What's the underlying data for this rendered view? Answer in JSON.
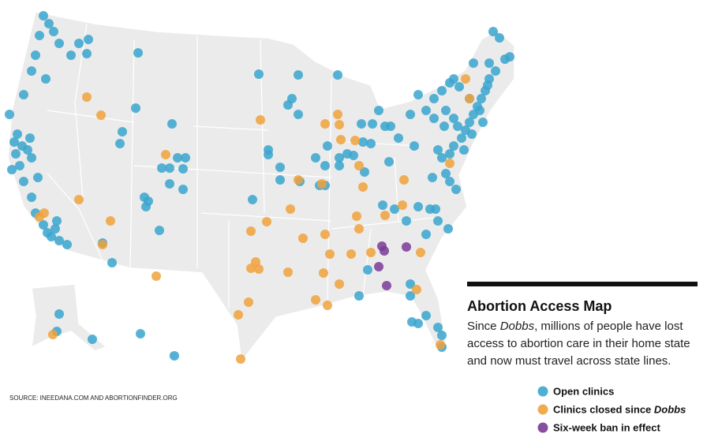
{
  "title": "Abortion Access Map",
  "description": [
    [
      "Since ",
      "Dobbs",
      ", millions of people have lost"
    ],
    [
      "access to abortion care in their home state"
    ],
    [
      "and now must travel across state lines."
    ]
  ],
  "legend": [
    {
      "label": "Open clinics",
      "color": "#3aa6cf"
    },
    {
      "label": "Clinics closed since ",
      "emphasis": "Dobbs",
      "color": "#f0a23c"
    },
    {
      "label": "Six-week ban in effect",
      "color": "#7a3b96"
    }
  ],
  "source": "SOURCE: INEEDANA.COM AND ABORTIONFINDER.ORG"
}
